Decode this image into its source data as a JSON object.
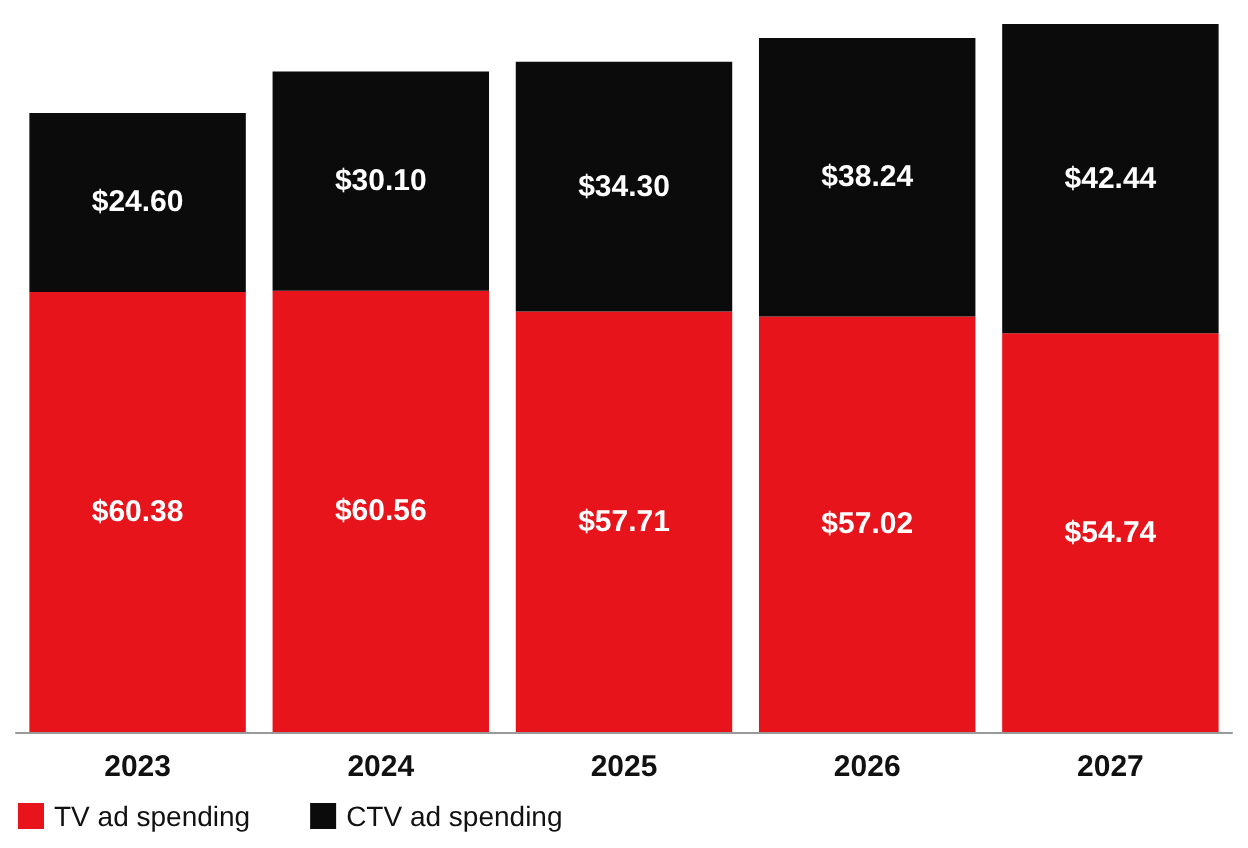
{
  "chart_data": {
    "type": "bar",
    "stacked": true,
    "categories": [
      "2023",
      "2024",
      "2025",
      "2026",
      "2027"
    ],
    "series": [
      {
        "name": "TV ad spending",
        "color": "#e8141c",
        "values": [
          60.38,
          60.56,
          57.71,
          57.02,
          54.74
        ],
        "value_labels": [
          "$60.38",
          "$60.56",
          "$57.71",
          "$57.02",
          "$54.74"
        ]
      },
      {
        "name": "CTV ad spending",
        "color": "#0b0b0b",
        "values": [
          24.6,
          30.1,
          34.3,
          38.24,
          42.44
        ],
        "value_labels": [
          "$24.60",
          "$30.10",
          "$34.30",
          "$38.24",
          "$42.44"
        ]
      }
    ],
    "legend": "bottom left"
  }
}
